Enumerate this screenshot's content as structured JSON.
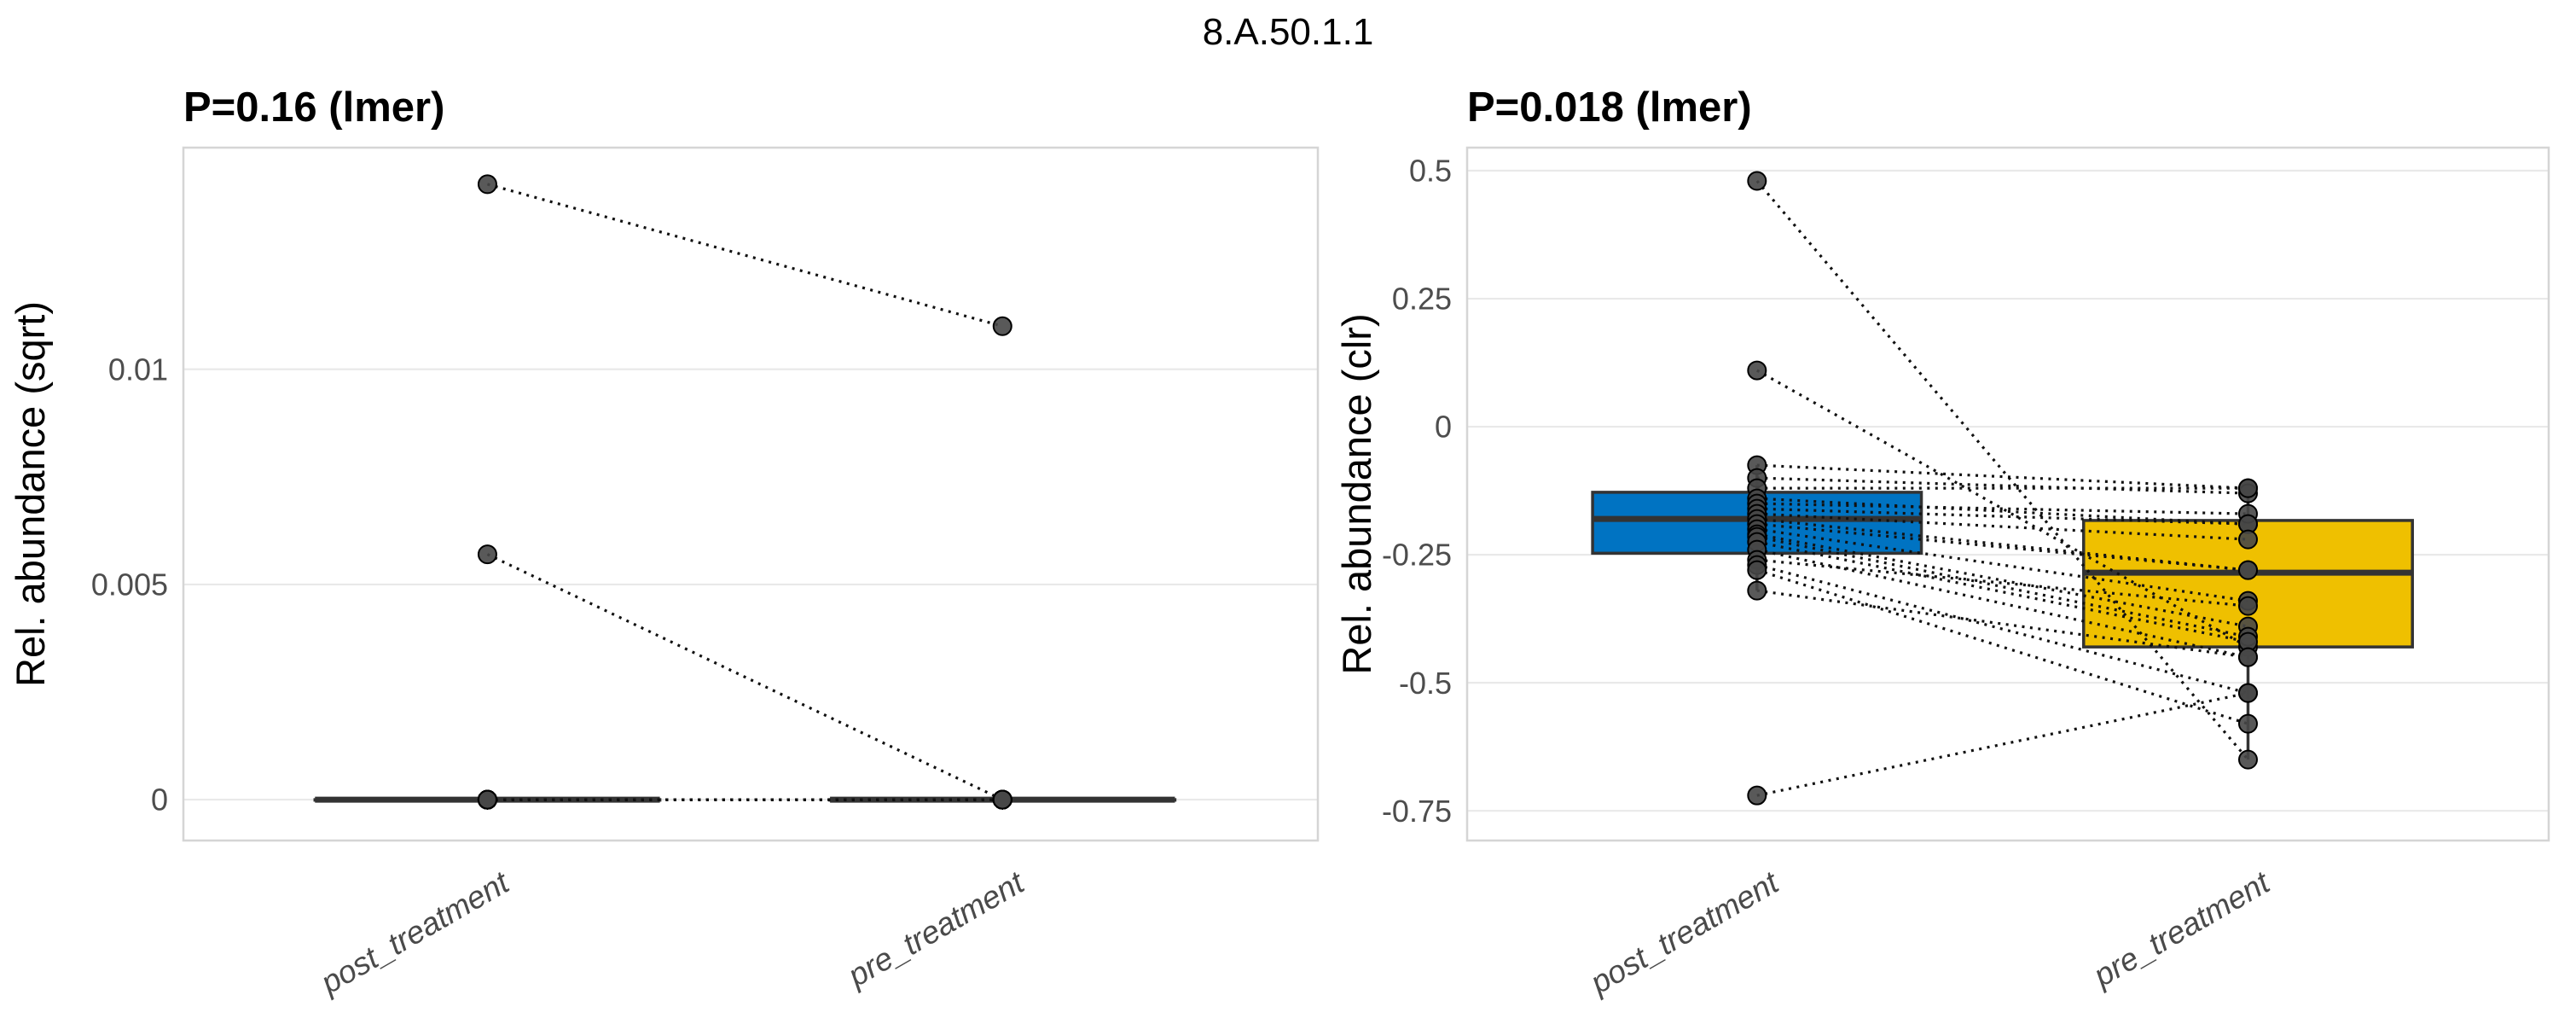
{
  "figure": {
    "title": "8.A.50.1.1",
    "background": "#FFFFFF"
  },
  "style": {
    "point_fill": "#474747",
    "point_stroke": "#000000",
    "pair_line_color": "#111111",
    "pair_line_style": "dotted",
    "box_border_color": "#333333",
    "gridline_color": "#E9E9E9",
    "panel_border_color": "#D5D5D5",
    "tick_label_color": "#4D4D4D",
    "x_label_color": "#4A4A4A",
    "post_box_fill": "#0073C2",
    "pre_box_fill": "#EFC000"
  },
  "chart_data": [
    {
      "type": "boxplot",
      "subtype": "paired-boxplot-with-points",
      "title": "P=0.16 (lmer)",
      "xlabel": "",
      "ylabel": "Rel. abundance (sqrt)",
      "categories": [
        "post_treatment",
        "pre_treatment"
      ],
      "ytick_labels": [
        "0",
        "0.005",
        "0.01"
      ],
      "ytick_values": [
        0,
        0.005,
        0.01
      ],
      "ylim": [
        -0.00095,
        0.01515
      ],
      "grid": "major-horizontal",
      "legend": "none",
      "boxes": [
        {
          "category": "post_treatment",
          "fill": "#0073C2",
          "whisker_low": 0,
          "q1": 0,
          "median": 0,
          "q3": 0,
          "whisker_high": 0
        },
        {
          "category": "pre_treatment",
          "fill": "#EFC000",
          "whisker_low": 0,
          "q1": 0,
          "median": 0,
          "q3": 0,
          "whisker_high": 0
        }
      ],
      "pairs_note": "each pair = [post_treatment value, pre_treatment value], joined by dotted line",
      "pairs": [
        [
          0.0143,
          0.011
        ],
        [
          0.0057,
          0.0
        ],
        [
          0.0,
          0.0
        ],
        [
          0.0,
          0.0
        ],
        [
          0.0,
          0.0
        ],
        [
          0.0,
          0.0
        ],
        [
          0.0,
          0.0
        ],
        [
          0.0,
          0.0
        ],
        [
          0.0,
          0.0
        ],
        [
          0.0,
          0.0
        ],
        [
          0.0,
          0.0
        ],
        [
          0.0,
          0.0
        ],
        [
          0.0,
          0.0
        ],
        [
          0.0,
          0.0
        ],
        [
          0.0,
          0.0
        ],
        [
          0.0,
          0.0
        ],
        [
          0.0,
          0.0
        ],
        [
          0.0,
          0.0
        ],
        [
          0.0,
          0.0
        ],
        [
          0.0,
          0.0
        ],
        [
          0.0,
          0.0
        ]
      ]
    },
    {
      "type": "boxplot",
      "subtype": "paired-boxplot-with-points",
      "title": "P=0.018 (lmer)",
      "xlabel": "",
      "ylabel": "Rel. abundance (clr)",
      "categories": [
        "post_treatment",
        "pre_treatment"
      ],
      "ytick_labels": [
        "0.5",
        "0.25",
        "0",
        "-0.25",
        "-0.5",
        "-0.75"
      ],
      "ytick_values": [
        0.5,
        0.25,
        0,
        -0.25,
        -0.5,
        -0.75
      ],
      "ylim": [
        -0.808,
        0.545
      ],
      "grid": "major-horizontal",
      "legend": "none",
      "boxes": [
        {
          "category": "post_treatment",
          "fill": "#0073C2",
          "whisker_low": -0.32,
          "q1": -0.247,
          "median": -0.18,
          "q3": -0.128,
          "whisker_high": -0.075
        },
        {
          "category": "pre_treatment",
          "fill": "#EFC000",
          "whisker_low": -0.65,
          "q1": -0.43,
          "median": -0.285,
          "q3": -0.183,
          "whisker_high": -0.118
        }
      ],
      "pairs_note": "each pair = [post_treatment value, pre_treatment value], joined by dotted line",
      "pairs": [
        [
          0.48,
          -0.65
        ],
        [
          0.11,
          -0.43
        ],
        [
          -0.075,
          -0.12
        ],
        [
          -0.1,
          -0.13
        ],
        [
          -0.12,
          -0.12
        ],
        [
          -0.14,
          -0.19
        ],
        [
          -0.15,
          -0.17
        ],
        [
          -0.16,
          -0.19
        ],
        [
          -0.17,
          -0.22
        ],
        [
          -0.18,
          -0.28
        ],
        [
          -0.19,
          -0.28
        ],
        [
          -0.2,
          -0.34
        ],
        [
          -0.21,
          -0.39
        ],
        [
          -0.215,
          -0.41
        ],
        [
          -0.225,
          -0.42
        ],
        [
          -0.24,
          -0.45
        ],
        [
          -0.26,
          -0.35
        ],
        [
          -0.27,
          -0.52
        ],
        [
          -0.28,
          -0.58
        ],
        [
          -0.32,
          -0.45
        ],
        [
          -0.72,
          -0.52
        ]
      ]
    }
  ]
}
